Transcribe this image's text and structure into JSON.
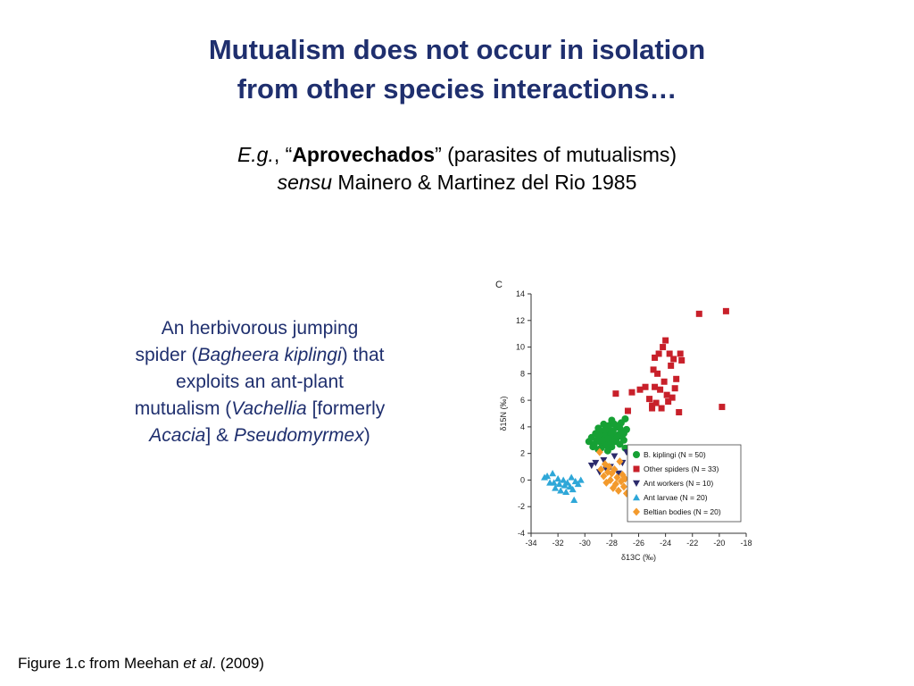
{
  "slide": {
    "title_line1": "Mutualism does not occur in isolation",
    "title_line2": "from other species interactions…",
    "subtitle": {
      "eg": "E.g.",
      "comma": ", “",
      "term": "Aprovechados",
      "rest": "” (parasites of mutualisms)",
      "sensu": "sensu",
      "citation": " Mainero & Martinez del Rio 1985"
    },
    "description": {
      "p1": "An herbivorous jumping spider (",
      "genus1": "Bagheera kiplingi",
      "p2": ") that exploits an ant-plant mutualism (",
      "genus2": "Vachellia",
      "p3": " [formerly ",
      "genus3": "Acacia",
      "p4": "] & ",
      "genus4": "Pseudomyrmex",
      "p5": ")"
    },
    "caption": {
      "pre": "Figure 1.c from Meehan ",
      "etal": "et al",
      "post": ". (2009)"
    }
  },
  "chart_data": {
    "type": "scatter",
    "panel_label": "C",
    "xlabel": "δ13C (‰)",
    "ylabel": "δ15N (‰)",
    "xlim": [
      -34,
      -18
    ],
    "ylim": [
      -4,
      14
    ],
    "xticks": [
      -34,
      -32,
      -30,
      -28,
      -26,
      -24,
      -22,
      -20,
      -18
    ],
    "yticks": [
      -4,
      -2,
      0,
      2,
      4,
      6,
      8,
      10,
      12,
      14
    ],
    "grid": false,
    "legend_position": "bottom-right",
    "series": [
      {
        "name": "B. kiplingi (N = 50)",
        "legend_italic": "B. kiplingi",
        "legend_rest": " (N = 50)",
        "color": "#16a034",
        "marker": "circle",
        "points": [
          [
            -29.7,
            2.9
          ],
          [
            -29.5,
            3.2
          ],
          [
            -29.3,
            2.7
          ],
          [
            -29.2,
            3.5
          ],
          [
            -29.0,
            2.3
          ],
          [
            -29.0,
            3.9
          ],
          [
            -28.9,
            2.9
          ],
          [
            -28.8,
            3.3
          ],
          [
            -28.7,
            2.6
          ],
          [
            -28.6,
            4.2
          ],
          [
            -28.5,
            3.0
          ],
          [
            -28.4,
            3.6
          ],
          [
            -28.3,
            2.2
          ],
          [
            -28.3,
            3.9
          ],
          [
            -28.2,
            2.8
          ],
          [
            -28.1,
            3.3
          ],
          [
            -28.0,
            4.5
          ],
          [
            -28.0,
            2.5
          ],
          [
            -27.9,
            3.7
          ],
          [
            -27.8,
            3.1
          ],
          [
            -27.7,
            2.9
          ],
          [
            -27.6,
            4.0
          ],
          [
            -27.5,
            3.4
          ],
          [
            -27.4,
            2.7
          ],
          [
            -27.3,
            4.3
          ],
          [
            -27.2,
            3.6
          ],
          [
            -27.1,
            3.0
          ],
          [
            -27.0,
            4.6
          ],
          [
            -27.0,
            2.4
          ],
          [
            -26.9,
            3.8
          ],
          [
            -28.6,
            3.5
          ],
          [
            -29.1,
            3.0
          ],
          [
            -28.2,
            4.1
          ],
          [
            -27.6,
            3.2
          ],
          [
            -28.8,
            2.4
          ],
          [
            -29.4,
            2.5
          ],
          [
            -27.9,
            2.9
          ],
          [
            -28.5,
            3.8
          ],
          [
            -27.3,
            3.3
          ],
          [
            -28.0,
            3.5
          ],
          [
            -28.7,
            3.0
          ],
          [
            -27.5,
            4.0
          ],
          [
            -28.3,
            3.1
          ],
          [
            -29.0,
            3.4
          ],
          [
            -27.8,
            4.2
          ],
          [
            -28.4,
            2.6
          ],
          [
            -27.1,
            3.5
          ],
          [
            -28.9,
            3.7
          ],
          [
            -27.4,
            3.9
          ],
          [
            -28.1,
            2.7
          ]
        ]
      },
      {
        "name": "Other spiders (N = 33)",
        "color": "#c8202a",
        "marker": "square",
        "points": [
          [
            -27.7,
            6.5
          ],
          [
            -26.8,
            5.2
          ],
          [
            -26.5,
            6.6
          ],
          [
            -25.9,
            6.8
          ],
          [
            -25.5,
            7.0
          ],
          [
            -25.2,
            6.1
          ],
          [
            -25.0,
            5.6
          ],
          [
            -24.9,
            8.3
          ],
          [
            -24.8,
            7.0
          ],
          [
            -24.7,
            5.8
          ],
          [
            -24.5,
            9.5
          ],
          [
            -24.4,
            6.8
          ],
          [
            -24.3,
            5.4
          ],
          [
            -24.2,
            10.0
          ],
          [
            -24.1,
            7.4
          ],
          [
            -23.9,
            6.4
          ],
          [
            -23.8,
            5.9
          ],
          [
            -23.7,
            9.5
          ],
          [
            -23.6,
            8.6
          ],
          [
            -23.5,
            6.2
          ],
          [
            -23.4,
            9.1
          ],
          [
            -23.3,
            6.9
          ],
          [
            -23.2,
            7.6
          ],
          [
            -23.0,
            5.1
          ],
          [
            -22.9,
            9.5
          ],
          [
            -22.8,
            9.0
          ],
          [
            -24.8,
            9.2
          ],
          [
            -25.0,
            5.4
          ],
          [
            -24.6,
            8.0
          ],
          [
            -24.0,
            10.5
          ],
          [
            -21.5,
            12.5
          ],
          [
            -19.5,
            12.7
          ],
          [
            -19.8,
            5.5
          ]
        ]
      },
      {
        "name": "Ant workers (N = 10)",
        "color": "#2b2a6b",
        "marker": "triangle-down",
        "points": [
          [
            -29.5,
            1.1
          ],
          [
            -29.2,
            1.3
          ],
          [
            -28.9,
            0.6
          ],
          [
            -28.6,
            1.5
          ],
          [
            -28.4,
            0.8
          ],
          [
            -28.1,
            1.0
          ],
          [
            -27.8,
            1.8
          ],
          [
            -27.5,
            0.5
          ],
          [
            -27.2,
            1.3
          ],
          [
            -26.9,
            2.1
          ]
        ]
      },
      {
        "name": "Ant larvae (N = 20)",
        "color": "#2ea7d8",
        "marker": "triangle-up",
        "points": [
          [
            -33.0,
            0.2
          ],
          [
            -32.8,
            0.3
          ],
          [
            -32.6,
            -0.2
          ],
          [
            -32.4,
            0.5
          ],
          [
            -32.2,
            -0.6
          ],
          [
            -32.0,
            0.1
          ],
          [
            -31.9,
            -0.3
          ],
          [
            -31.8,
            -0.8
          ],
          [
            -31.6,
            0.0
          ],
          [
            -31.5,
            -0.4
          ],
          [
            -31.3,
            -0.2
          ],
          [
            -31.1,
            -0.5
          ],
          [
            -31.0,
            0.2
          ],
          [
            -30.9,
            -0.7
          ],
          [
            -30.7,
            -0.1
          ],
          [
            -30.5,
            -0.3
          ],
          [
            -30.3,
            0.0
          ],
          [
            -31.4,
            -0.9
          ],
          [
            -30.8,
            -1.5
          ],
          [
            -32.3,
            -0.2
          ]
        ]
      },
      {
        "name": "Beltian bodies (N = 20)",
        "color": "#f39a2c",
        "marker": "diamond",
        "points": [
          [
            -28.9,
            2.1
          ],
          [
            -28.8,
            0.8
          ],
          [
            -28.6,
            0.3
          ],
          [
            -28.5,
            1.2
          ],
          [
            -28.4,
            -0.2
          ],
          [
            -28.3,
            0.6
          ],
          [
            -28.2,
            1.0
          ],
          [
            -28.1,
            0.0
          ],
          [
            -28.0,
            0.5
          ],
          [
            -27.9,
            -0.6
          ],
          [
            -27.8,
            0.8
          ],
          [
            -27.7,
            -0.3
          ],
          [
            -27.6,
            0.2
          ],
          [
            -27.5,
            -0.8
          ],
          [
            -27.4,
            1.4
          ],
          [
            -27.3,
            -0.1
          ],
          [
            -27.2,
            0.4
          ],
          [
            -27.1,
            -0.5
          ],
          [
            -27.0,
            0.1
          ],
          [
            -26.9,
            -1.0
          ]
        ]
      }
    ]
  }
}
